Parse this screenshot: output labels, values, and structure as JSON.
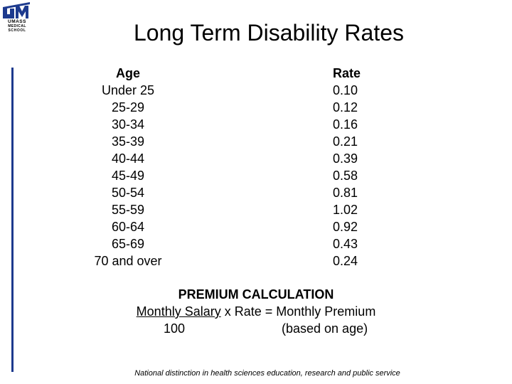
{
  "logo": {
    "line1": "UMASS",
    "line2": "MEDICAL",
    "line3": "SCHOOL",
    "color": "#1d3a8e"
  },
  "title": "Long Term Disability Rates",
  "table": {
    "age_header": "Age",
    "rate_header": "Rate",
    "rows": [
      {
        "age": "Under 25",
        "rate": "0.10"
      },
      {
        "age": "25-29",
        "rate": "0.12"
      },
      {
        "age": "30-34",
        "rate": "0.16"
      },
      {
        "age": "35-39",
        "rate": "0.21"
      },
      {
        "age": "40-44",
        "rate": "0.39"
      },
      {
        "age": "45-49",
        "rate": "0.58"
      },
      {
        "age": "50-54",
        "rate": "0.81"
      },
      {
        "age": "55-59",
        "rate": "1.02"
      },
      {
        "age": "60-64",
        "rate": "0.92"
      },
      {
        "age": "65-69",
        "rate": "0.43"
      },
      {
        "age": "70 and over",
        "rate": "0.24"
      }
    ]
  },
  "premium": {
    "title": "PREMIUM CALCULATION",
    "formula_numerator": "Monthly Salary",
    "formula_rest": " x Rate = Monthly Premium",
    "denominator": "100",
    "note": "(based on age)"
  },
  "footer": "National distinction in health sciences education, research and public service"
}
